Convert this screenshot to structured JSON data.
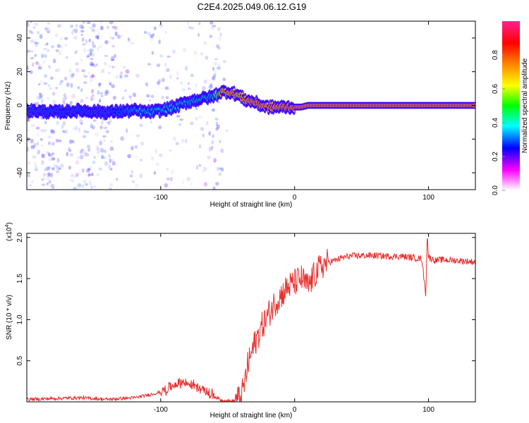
{
  "title": "C2E4.2025.049.06.12.G19",
  "chart_data": [
    {
      "type": "heatmap",
      "name": "spectrogram",
      "xlabel": "Height of straight line (km)",
      "ylabel": "Frequency (Hz)",
      "xlim": [
        -200,
        135
      ],
      "ylim": [
        -50,
        50
      ],
      "xticks": [
        -100,
        0,
        100
      ],
      "xtick_labels": [
        "-100",
        "0",
        "100"
      ],
      "yticks": [
        -40,
        -20,
        0,
        20,
        40
      ],
      "ytick_labels": [
        "-40",
        "-20",
        "0",
        "20",
        "40"
      ],
      "ridge": {
        "x": [
          -200,
          -180,
          -160,
          -140,
          -120,
          -110,
          -100,
          -90,
          -80,
          -70,
          -62,
          -55,
          -48,
          -42,
          -36,
          -30,
          -25,
          -20,
          -12,
          -5,
          0,
          5,
          10,
          20,
          40,
          60,
          80,
          95,
          100,
          120,
          135
        ],
        "freq": [
          -3,
          -4,
          -3,
          -4,
          -3,
          -4,
          -3,
          -1,
          2,
          4,
          5,
          8,
          8,
          6,
          3,
          2,
          0,
          -1,
          -1,
          -1,
          -1,
          -1,
          0,
          0,
          0,
          0,
          0,
          0,
          0,
          0,
          0
        ],
        "amplitude": [
          0.2,
          0.22,
          0.22,
          0.2,
          0.35,
          0.42,
          0.4,
          0.42,
          0.42,
          0.45,
          0.45,
          0.85,
          0.9,
          0.85,
          0.9,
          0.95,
          0.92,
          0.9,
          0.93,
          0.95,
          0.95,
          0.95,
          0.95,
          0.95,
          0.95,
          0.95,
          0.95,
          0.95,
          0.95,
          0.95,
          0.95
        ]
      },
      "colorbar": {
        "label": "Normalized spectral amplitude",
        "range": [
          0,
          1
        ],
        "ticks": [
          0.0,
          0.2,
          0.4,
          0.6,
          0.8
        ],
        "tick_labels": [
          "0.0",
          "0.2",
          "0.4",
          "0.6",
          "0.8"
        ]
      }
    },
    {
      "type": "line",
      "name": "snr",
      "xlabel": "Height of straight line (km)",
      "ylabel": "SNR (10 * v/v)",
      "y_multiplier": "(x10",
      "y_multiplier_exp": "4",
      "y_multiplier_close": ")",
      "xlim": [
        -200,
        135
      ],
      "ylim": [
        0,
        2.05
      ],
      "xticks": [
        -100,
        0,
        100
      ],
      "xtick_labels": [
        "-100",
        "0",
        "100"
      ],
      "yticks": [
        0.5,
        1.0,
        1.5,
        2.0
      ],
      "ytick_labels": [
        "0.5",
        "1.0",
        "1.5",
        "2.0"
      ],
      "color": "#e8312f",
      "series": [
        {
          "name": "SNR",
          "x": [
            -200,
            -180,
            -160,
            -140,
            -130,
            -120,
            -110,
            -100,
            -95,
            -90,
            -85,
            -80,
            -75,
            -70,
            -65,
            -60,
            -55,
            -50,
            -45,
            -40,
            -37,
            -35,
            -30,
            -25,
            -20,
            -15,
            -10,
            -5,
            0,
            5,
            10,
            15,
            20,
            25,
            30,
            35,
            40,
            50,
            60,
            70,
            80,
            90,
            95,
            98,
            99,
            100,
            105,
            110,
            120,
            130,
            135
          ],
          "values": [
            0.03,
            0.04,
            0.05,
            0.03,
            0.04,
            0.05,
            0.08,
            0.12,
            0.16,
            0.2,
            0.24,
            0.22,
            0.2,
            0.16,
            0.12,
            0.07,
            0.02,
            0.01,
            0.01,
            0.05,
            0.25,
            0.45,
            0.7,
            0.9,
            1.05,
            1.2,
            1.3,
            1.4,
            1.45,
            1.5,
            1.4,
            1.55,
            1.65,
            1.7,
            1.72,
            1.75,
            1.77,
            1.78,
            1.78,
            1.77,
            1.77,
            1.75,
            1.74,
            1.3,
            2.05,
            1.76,
            1.72,
            1.73,
            1.72,
            1.71,
            1.7
          ]
        }
      ]
    }
  ]
}
